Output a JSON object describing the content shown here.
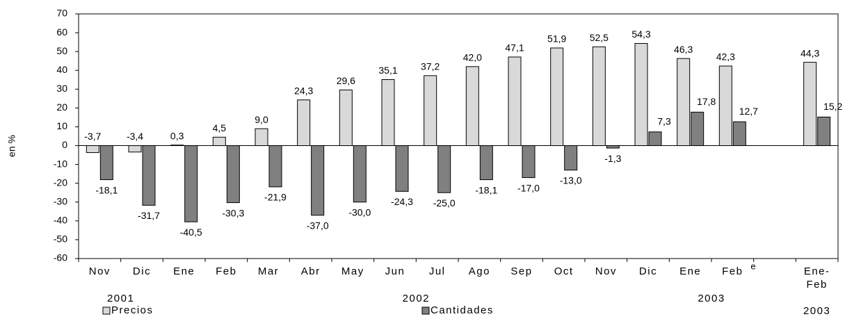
{
  "chart_data": {
    "type": "bar",
    "y_label": "en %",
    "categories": [
      "Nov",
      "Dic",
      "Ene",
      "Feb",
      "Mar",
      "Abr",
      "May",
      "Jun",
      "Jul",
      "Ago",
      "Sep",
      "Oct",
      "Nov",
      "Dic",
      "Ene",
      "Feb",
      null,
      "Ene-Feb"
    ],
    "groups": [
      {
        "label": "2001",
        "span": 2
      },
      {
        "label": "2002",
        "span": 12
      },
      {
        "label": "2003",
        "span": 2
      },
      {
        "label": null,
        "span": 1
      },
      {
        "label": "2003",
        "span": 1
      }
    ],
    "annotations": [
      "e"
    ],
    "series": [
      {
        "name": "Precios",
        "color": "#d9d9d9",
        "values": [
          -3.7,
          -3.4,
          0.3,
          4.5,
          9.0,
          24.3,
          29.6,
          35.1,
          37.2,
          42.0,
          47.1,
          51.9,
          52.5,
          54.3,
          46.3,
          42.3,
          null,
          44.3
        ],
        "value_labels": [
          "-3,7",
          "-3,4",
          "0,3",
          "4,5",
          "9,0",
          "24,3",
          "29,6",
          "35,1",
          "37,2",
          "42,0",
          "47,1",
          "51,9",
          "52,5",
          "54,3",
          "46,3",
          "42,3",
          null,
          "44,3"
        ]
      },
      {
        "name": "Cantidades",
        "color": "#808080",
        "values": [
          -18.1,
          -31.7,
          -40.5,
          -30.3,
          -21.9,
          -37.0,
          -30.0,
          -24.3,
          -25.0,
          -18.1,
          -17.0,
          -13.0,
          -1.3,
          7.3,
          17.8,
          12.7,
          null,
          15.2
        ],
        "value_labels": [
          "-18,1",
          "-31,7",
          "-40,5",
          "-30,3",
          "-21,9",
          "-37,0",
          "-30,0",
          "-24,3",
          "-25,0",
          "-18,1",
          "-17,0",
          "-13,0",
          "-1,3",
          "7,3",
          "17,8",
          "12,7",
          null,
          "15,2"
        ]
      }
    ],
    "ylim": [
      -60,
      70
    ],
    "yticks": [
      -60,
      -50,
      -40,
      -30,
      -20,
      -10,
      0,
      10,
      20,
      30,
      40,
      50,
      60,
      70
    ],
    "grid": false,
    "legend": "bottom"
  }
}
